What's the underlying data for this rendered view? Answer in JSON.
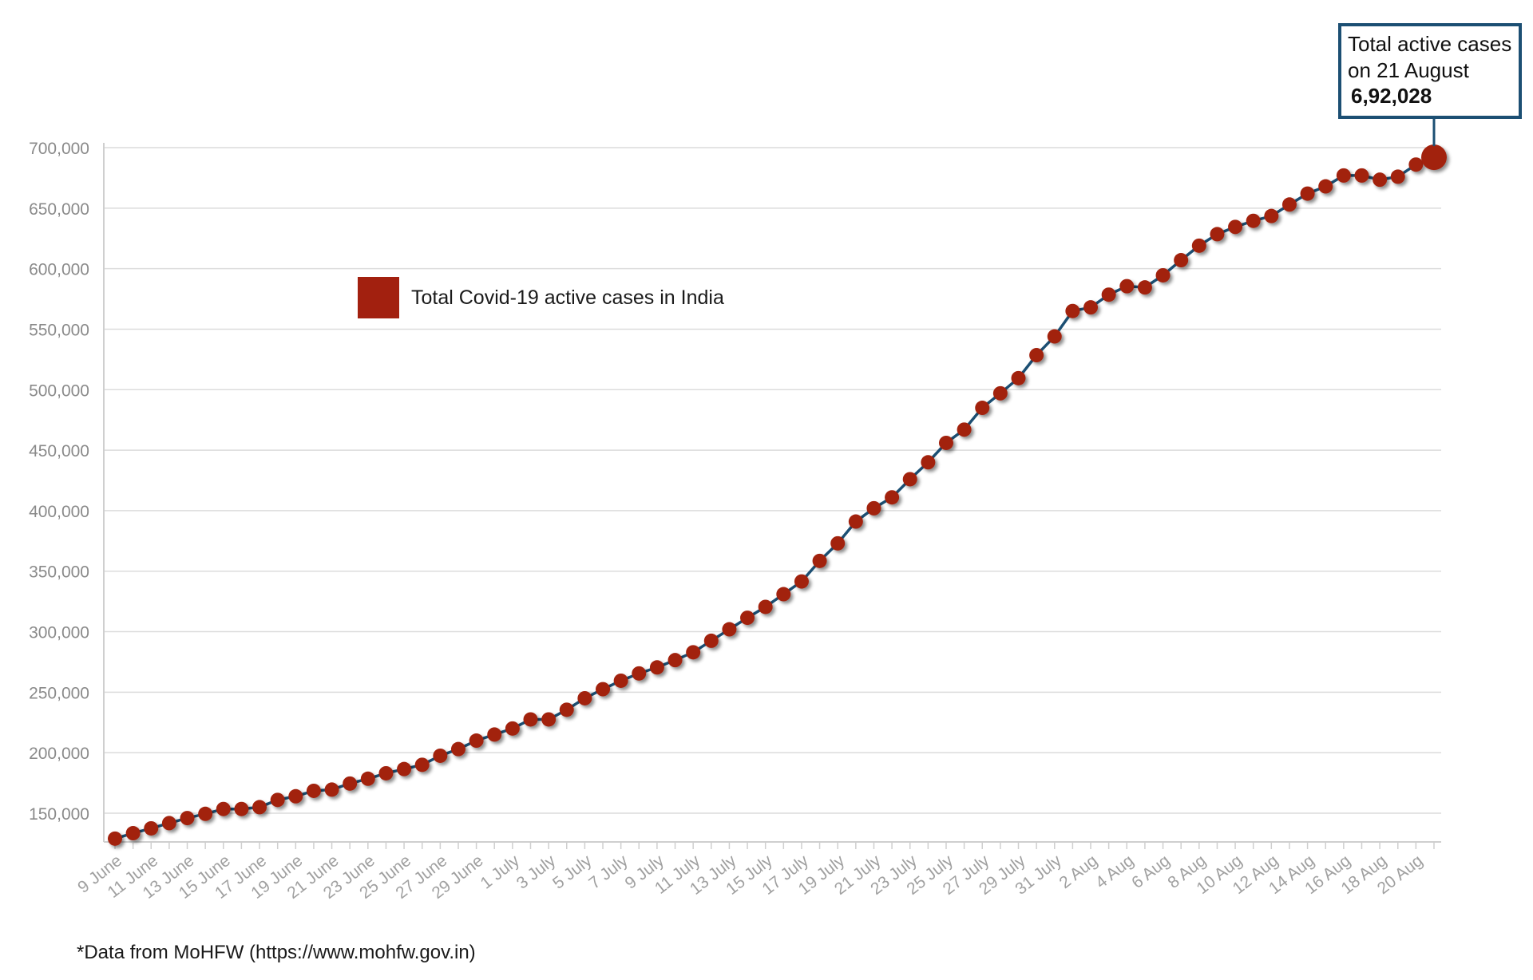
{
  "chart_data": {
    "type": "line",
    "legend": "Total Covid-19 active cases in India",
    "legend_position": "top-left",
    "grid": true,
    "ylim": [
      125000,
      700000
    ],
    "yticks": [
      "150,000",
      "200,000",
      "250,000",
      "300,000",
      "350,000",
      "400,000",
      "450,000",
      "500,000",
      "550,000",
      "600,000",
      "650,000",
      "700,000"
    ],
    "ytick_values": [
      150000,
      200000,
      250000,
      300000,
      350000,
      400000,
      450000,
      500000,
      550000,
      600000,
      650000,
      700000
    ],
    "xtick_labels": [
      "9 June",
      "11 June",
      "13 June",
      "15 June",
      "17 June",
      "19 June",
      "21 June",
      "23 June",
      "25 June",
      "27 June",
      "29 June",
      "1 July",
      "3 July",
      "5 July",
      "7 July",
      "9 July",
      "11 July",
      "13 July",
      "15 July",
      "17 July",
      "19 July",
      "21 July",
      "23 July",
      "25 July",
      "27 July",
      "29 July",
      "31 July",
      "2 Aug",
      "4 Aug",
      "6 Aug",
      "8 Aug",
      "10 Aug",
      "12 Aug",
      "14 Aug",
      "16 Aug",
      "18 Aug",
      "20 Aug"
    ],
    "series": [
      {
        "name": "Total Covid-19 active cases in India",
        "color": "#a2200f",
        "line_color": "#1c4f73",
        "x_start": "9 June",
        "x_end": "21 August",
        "values": [
          129000,
          133500,
          137500,
          141800,
          146000,
          149500,
          153500,
          153500,
          155000,
          161000,
          164000,
          168500,
          169500,
          174500,
          178500,
          183000,
          186500,
          190000,
          197500,
          203000,
          210000,
          215000,
          220000,
          227500,
          227500,
          235500,
          245000,
          252500,
          259500,
          265500,
          270500,
          276500,
          283000,
          292500,
          302000,
          311500,
          320500,
          331000,
          341500,
          358500,
          373000,
          391000,
          402000,
          411000,
          426000,
          440000,
          456000,
          467000,
          485000,
          497000,
          509500,
          528500,
          544000,
          565000,
          568000,
          578500,
          585500,
          584500,
          594500,
          607000,
          619000,
          628500,
          634500,
          639500,
          643500,
          653000,
          662000,
          668000,
          677000,
          677000,
          673500,
          676000,
          686000,
          692028
        ]
      }
    ],
    "callout": {
      "line1": "Total active cases",
      "line2": "on 21 August",
      "value": "6,92,028"
    },
    "source_note": "*Data from MoHFW (https://www.mohfw.gov.in)"
  }
}
